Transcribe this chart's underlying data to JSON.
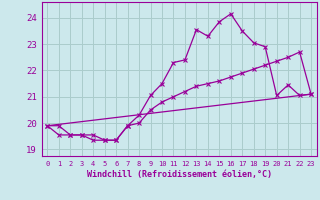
{
  "bg_color": "#cce8ec",
  "grid_color": "#aacccc",
  "line_color": "#990099",
  "xlabel": "Windchill (Refroidissement éolien,°C)",
  "xlim": [
    -0.5,
    23.5
  ],
  "ylim": [
    18.75,
    24.6
  ],
  "yticks": [
    19,
    20,
    21,
    22,
    23,
    24
  ],
  "xticks": [
    0,
    1,
    2,
    3,
    4,
    5,
    6,
    7,
    8,
    9,
    10,
    11,
    12,
    13,
    14,
    15,
    16,
    17,
    18,
    19,
    20,
    21,
    22,
    23
  ],
  "series1_x": [
    0,
    1,
    2,
    3,
    4,
    5,
    6,
    7,
    8,
    9,
    10,
    11,
    12,
    13,
    14,
    15,
    16,
    17,
    18,
    19,
    20,
    21,
    22,
    23
  ],
  "series1_y": [
    19.9,
    19.9,
    19.55,
    19.55,
    19.55,
    19.35,
    19.35,
    19.9,
    20.3,
    21.05,
    21.5,
    22.3,
    22.4,
    23.55,
    23.3,
    23.85,
    24.15,
    23.5,
    23.05,
    22.9,
    21.05,
    21.45,
    21.05,
    21.1
  ],
  "series2_x": [
    0,
    1,
    2,
    3,
    4,
    5,
    6,
    7,
    8,
    9,
    10,
    11,
    12,
    13,
    14,
    15,
    16,
    17,
    18,
    19,
    20,
    21,
    22,
    23
  ],
  "series2_y": [
    19.9,
    19.55,
    19.55,
    19.55,
    19.35,
    19.35,
    19.35,
    19.9,
    20.0,
    20.5,
    20.8,
    21.0,
    21.2,
    21.4,
    21.5,
    21.6,
    21.75,
    21.9,
    22.05,
    22.2,
    22.35,
    22.5,
    22.7,
    21.1
  ],
  "series3_x": [
    0,
    23
  ],
  "series3_y": [
    19.9,
    21.1
  ]
}
